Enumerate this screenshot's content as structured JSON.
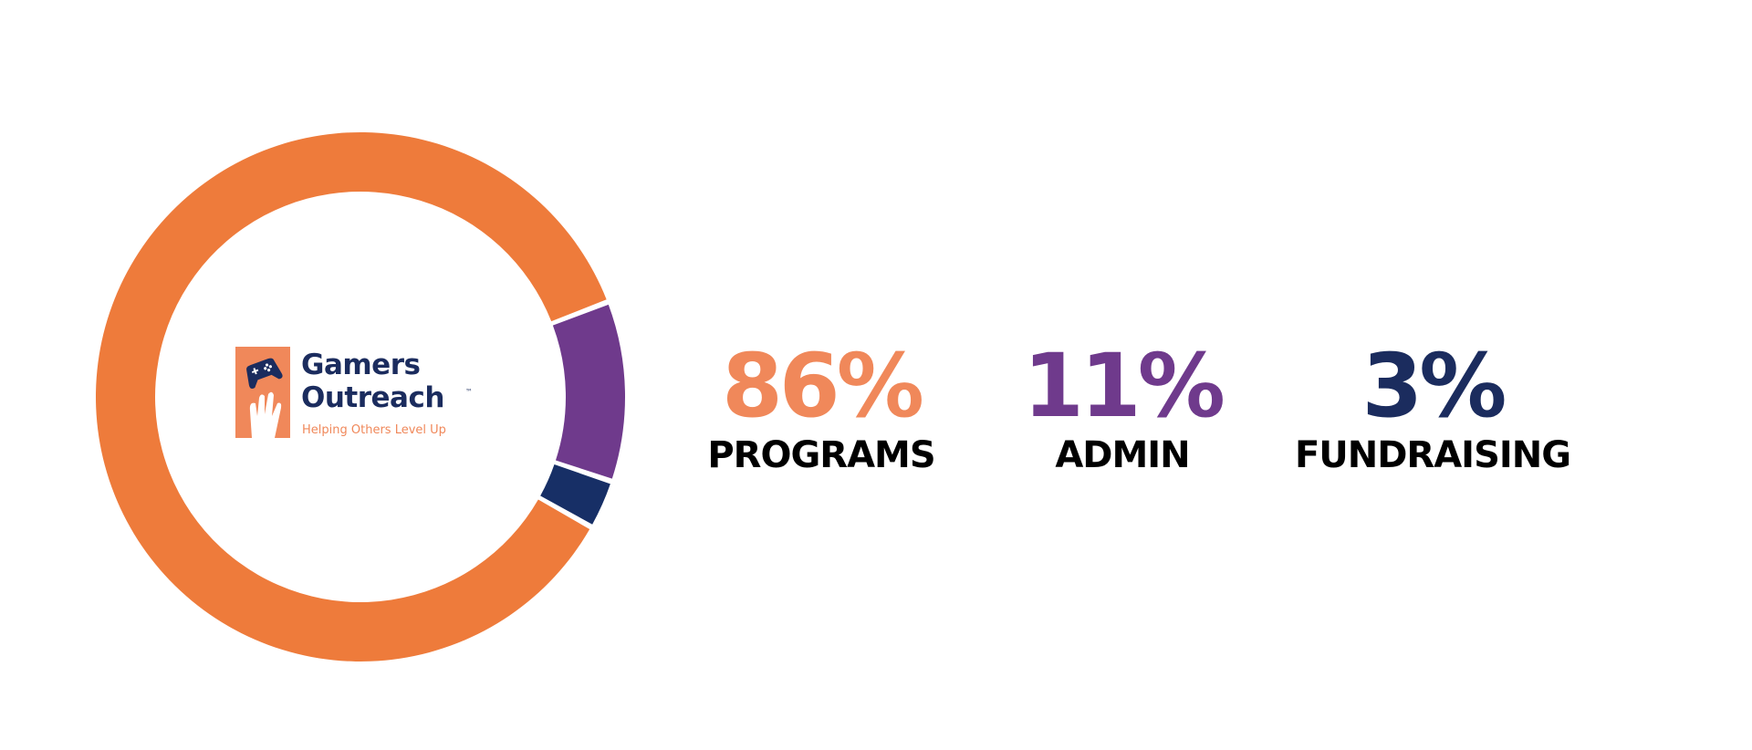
{
  "chart_data": {
    "type": "pie",
    "style": "donut",
    "categories": [
      "PROGRAMS",
      "ADMIN",
      "FUNDRAISING"
    ],
    "values": [
      86,
      11,
      3
    ],
    "value_labels": [
      "86%",
      "11%",
      "3%"
    ],
    "colors": [
      "#ee7b3b",
      "#6f3a8c",
      "#172f66"
    ],
    "label_colors": [
      "#f0885a",
      "#6f3a8c",
      "#1b2c5e"
    ],
    "title": "",
    "legend": "right"
  },
  "logo": {
    "name_line1": "Gamers",
    "name_line2": "Outreach",
    "trademark": "™",
    "tagline": "Helping Others Level Up",
    "icons": [
      "game-controller-icon",
      "hand-icon"
    ]
  }
}
